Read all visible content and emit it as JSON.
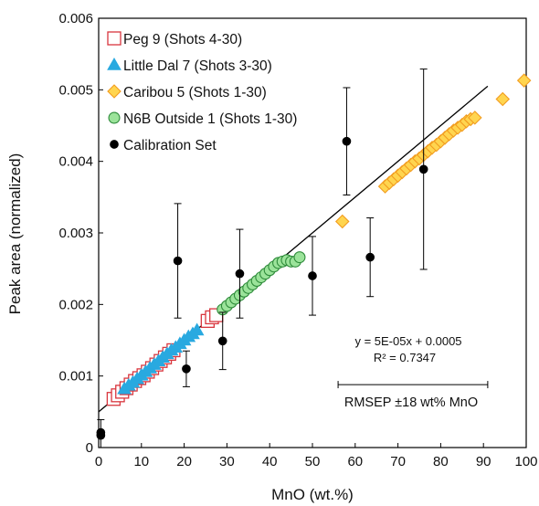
{
  "chart_data": {
    "type": "scatter",
    "xlabel": "MnO (wt.%)",
    "ylabel": "Peak area (normalized)",
    "xlim": [
      0,
      100
    ],
    "ylim": [
      0,
      0.006
    ],
    "x_ticks": [
      "0",
      "10",
      "20",
      "30",
      "40",
      "50",
      "60",
      "70",
      "80",
      "90",
      "100"
    ],
    "y_ticks": [
      "0",
      "0.001",
      "0.002",
      "0.003",
      "0.004",
      "0.005",
      "0.006"
    ],
    "legend_position": "top-left",
    "series": [
      {
        "name": "Peg 9 (Shots 4-30)",
        "marker": "square",
        "fill": "#ffffff",
        "stroke": "#d9363e",
        "x": [
          3.5,
          4.5,
          5.5,
          6.5,
          7.5,
          8.5,
          9.5,
          10.5,
          11.5,
          12.5,
          13.5,
          14.5,
          15.5,
          16.5,
          17.5,
          25.5,
          26.5,
          27.5
        ],
        "y": [
          0.00068,
          0.00073,
          0.00078,
          0.00083,
          0.00088,
          0.00093,
          0.00097,
          0.00101,
          0.00106,
          0.00111,
          0.00116,
          0.00121,
          0.00126,
          0.00131,
          0.00136,
          0.00177,
          0.00182,
          0.00185
        ]
      },
      {
        "name": "Little Dal 7 (Shots 3-30)",
        "marker": "triangle",
        "fill": "#29a9e0",
        "stroke": "#29a9e0",
        "x": [
          6,
          7,
          8,
          9,
          10,
          11,
          12,
          13,
          14,
          15,
          16,
          17,
          18,
          19,
          20,
          21,
          22,
          23
        ],
        "y": [
          0.00082,
          0.00087,
          0.00091,
          0.00096,
          0.00101,
          0.00106,
          0.00111,
          0.00116,
          0.00121,
          0.00126,
          0.00131,
          0.00136,
          0.0014,
          0.00145,
          0.0015,
          0.00155,
          0.00159,
          0.00164
        ]
      },
      {
        "name": "Caribou 5 (Shots 1-30)",
        "marker": "diamond",
        "fill": "#ffd54f",
        "stroke": "#f29c1f",
        "x": [
          57,
          67,
          68,
          69,
          70,
          71,
          72,
          73,
          74,
          75,
          76,
          77,
          78,
          79,
          80,
          81,
          82,
          83,
          84,
          85,
          86,
          87,
          88,
          94.5,
          99.5
        ],
        "y": [
          0.00316,
          0.00365,
          0.0037,
          0.00375,
          0.0038,
          0.00385,
          0.0039,
          0.00395,
          0.004,
          0.00404,
          0.00409,
          0.00414,
          0.00419,
          0.00423,
          0.00428,
          0.00433,
          0.00438,
          0.00443,
          0.00447,
          0.00451,
          0.00456,
          0.00459,
          0.00461,
          0.00487,
          0.00513
        ]
      },
      {
        "name": "N6B Outside 1 (Shots 1-30)",
        "marker": "circle",
        "fill": "#9be39a",
        "stroke": "#2e8b3a",
        "x": [
          29,
          30,
          31,
          32,
          33,
          34,
          35,
          36,
          37,
          38,
          39,
          40,
          41,
          42,
          43,
          44,
          45,
          46,
          47
        ],
        "y": [
          0.00193,
          0.00198,
          0.00203,
          0.00208,
          0.00213,
          0.00218,
          0.00223,
          0.00228,
          0.00233,
          0.00238,
          0.00243,
          0.00248,
          0.00253,
          0.00258,
          0.0026,
          0.00262,
          0.0026,
          0.0026,
          0.00266
        ]
      },
      {
        "name": "Calibration Set",
        "marker": "dot",
        "fill": "#000000",
        "stroke": "#000000",
        "x": [
          0.5,
          0.5,
          18.5,
          20.5,
          29,
          33,
          50,
          58,
          63.5,
          76
        ],
        "y": [
          0.00017,
          0.00021,
          0.00261,
          0.0011,
          0.00149,
          0.00243,
          0.0024,
          0.00428,
          0.00266,
          0.00389
        ],
        "error": [
          0.00022,
          0.0,
          0.0008,
          0.00025,
          0.0004,
          0.00062,
          0.00055,
          0.00075,
          0.00055,
          0.0014
        ]
      }
    ],
    "trendline": {
      "slope": 5e-05,
      "intercept": 0.0005,
      "x_range": [
        0,
        100
      ],
      "color": "#000000"
    },
    "annotations": {
      "equation": "y = 5E-05x + 0.0005",
      "r_squared": "R² = 0.7347",
      "rmsep_label": "RMSEP ±18 wt% MnO",
      "rmsep_bar_x": [
        56,
        91
      ],
      "rmsep_bar_y": 0.00088
    }
  }
}
